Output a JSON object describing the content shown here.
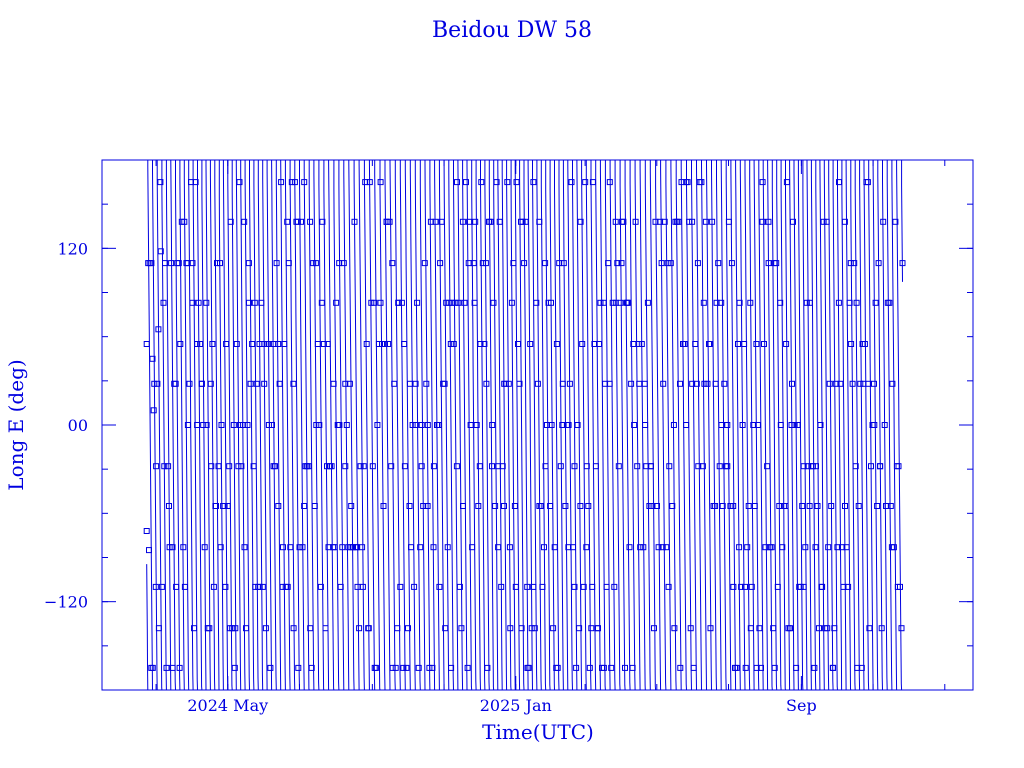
{
  "chart_data": {
    "type": "line",
    "title": "Beidou DW 58",
    "xlabel": "Time(UTC)",
    "ylabel": "Long E (deg)",
    "xlim": [
      "2024-01-15",
      "2026-01-25"
    ],
    "ylim": [
      -180,
      180
    ],
    "x_ticks": [
      {
        "value": "2024-05-01",
        "label": "2024 May"
      },
      {
        "value": "2025-01-01",
        "label": "2025 Jan"
      },
      {
        "value": "2025-09-01",
        "label": "Sep"
      }
    ],
    "y_ticks": [
      {
        "value": -120,
        "label": "−120"
      },
      {
        "value": 0,
        "label": "00"
      },
      {
        "value": 120,
        "label": "120"
      }
    ],
    "grid": false,
    "line_color": "#0000e0",
    "marker": "square",
    "series": [
      {
        "data_start": "2024-02-22",
        "data_end": "2025-11-26",
        "points": [
          [
            "2024-02-22",
            -72
          ],
          [
            "2024-02-24",
            -85
          ],
          [
            "2024-02-26",
            110
          ],
          [
            "2024-02-27",
            45
          ],
          [
            "2024-02-28",
            10
          ],
          [
            "2024-03-01",
            -28
          ],
          [
            "2024-03-03",
            65
          ],
          [
            "2024-03-05",
            118
          ],
          [
            "2024-03-08",
            -28
          ],
          [
            "2024-03-12",
            -55
          ],
          [
            "2024-03-15",
            -83
          ],
          [
            "2024-03-18",
            -110
          ],
          [
            "2024-03-21",
            -165
          ],
          [
            "2024-03-25",
            138
          ],
          [
            "2024-03-28",
            110
          ],
          [
            "2024-04-01",
            83
          ],
          [
            "2024-04-05",
            55
          ],
          [
            "2024-04-09",
            28
          ],
          [
            "2024-04-13",
            0
          ],
          [
            "2024-04-17",
            -28
          ],
          [
            "2024-04-21",
            -55
          ],
          [
            "2024-04-25",
            -83
          ],
          [
            "2024-04-29",
            -110
          ],
          [
            "2024-05-03",
            -138
          ],
          [
            "2024-05-07",
            -165
          ],
          [
            "2024-05-11",
            165
          ],
          [
            "2024-05-15",
            138
          ],
          [
            "2024-05-19",
            110
          ],
          [
            "2024-05-24",
            83
          ],
          [
            "2024-05-28",
            55
          ],
          [
            "2024-06-01",
            28
          ],
          [
            "2024-06-05",
            0
          ],
          [
            "2024-06-09",
            -28
          ],
          [
            "2024-06-13",
            -55
          ],
          [
            "2024-06-17",
            -83
          ],
          [
            "2024-06-21",
            -110
          ],
          [
            "2024-06-26",
            -138
          ],
          [
            "2024-06-30",
            -165
          ],
          [
            "2024-07-05",
            165
          ],
          [
            "2024-07-10",
            138
          ],
          [
            "2024-07-15",
            110
          ],
          [
            "2024-07-20",
            83
          ],
          [
            "2024-07-25",
            55
          ],
          [
            "2024-07-30",
            28
          ],
          [
            "2024-08-04",
            0
          ],
          [
            "2024-08-09",
            -28
          ],
          [
            "2024-08-14",
            -55
          ],
          [
            "2024-08-19",
            -83
          ],
          [
            "2024-08-24",
            -110
          ],
          [
            "2024-08-29",
            -138
          ],
          [
            "2024-09-03",
            -165
          ],
          [
            "2024-09-08",
            165
          ],
          [
            "2024-09-13",
            138
          ],
          [
            "2024-09-18",
            110
          ],
          [
            "2024-09-23",
            83
          ],
          [
            "2024-09-28",
            55
          ],
          [
            "2024-10-03",
            28
          ],
          [
            "2024-10-08",
            0
          ],
          [
            "2024-10-13",
            -28
          ],
          [
            "2024-10-18",
            -55
          ],
          [
            "2024-10-23",
            -83
          ],
          [
            "2024-10-28",
            -110
          ],
          [
            "2024-11-02",
            -138
          ],
          [
            "2024-11-07",
            -165
          ],
          [
            "2024-11-12",
            165
          ],
          [
            "2024-11-17",
            138
          ],
          [
            "2024-11-22",
            110
          ],
          [
            "2024-11-27",
            83
          ],
          [
            "2024-12-02",
            55
          ],
          [
            "2024-12-07",
            28
          ],
          [
            "2024-12-12",
            0
          ],
          [
            "2024-12-17",
            -28
          ],
          [
            "2024-12-22",
            -55
          ],
          [
            "2024-12-27",
            -83
          ],
          [
            "2025-01-01",
            -110
          ],
          [
            "2025-01-06",
            -138
          ],
          [
            "2025-01-11",
            -165
          ],
          [
            "2025-01-16",
            165
          ],
          [
            "2025-01-21",
            138
          ],
          [
            "2025-01-26",
            110
          ],
          [
            "2025-01-31",
            83
          ],
          [
            "2025-02-05",
            55
          ],
          [
            "2025-02-10",
            28
          ],
          [
            "2025-02-15",
            0
          ],
          [
            "2025-02-20",
            -28
          ],
          [
            "2025-02-25",
            -55
          ],
          [
            "2025-03-02",
            -83
          ],
          [
            "2025-03-07",
            -110
          ],
          [
            "2025-03-12",
            -138
          ],
          [
            "2025-03-17",
            -165
          ],
          [
            "2025-03-22",
            165
          ],
          [
            "2025-03-27",
            138
          ],
          [
            "2025-04-01",
            110
          ],
          [
            "2025-04-06",
            83
          ],
          [
            "2025-04-11",
            55
          ],
          [
            "2025-04-16",
            28
          ],
          [
            "2025-04-21",
            0
          ],
          [
            "2025-04-26",
            -28
          ],
          [
            "2025-05-01",
            -55
          ],
          [
            "2025-05-06",
            -83
          ],
          [
            "2025-05-11",
            -110
          ],
          [
            "2025-05-16",
            -138
          ],
          [
            "2025-05-21",
            -165
          ],
          [
            "2025-05-26",
            165
          ],
          [
            "2025-05-31",
            138
          ],
          [
            "2025-06-05",
            110
          ],
          [
            "2025-06-10",
            83
          ],
          [
            "2025-06-15",
            55
          ],
          [
            "2025-06-20",
            28
          ],
          [
            "2025-06-25",
            0
          ],
          [
            "2025-06-30",
            -28
          ],
          [
            "2025-07-05",
            -55
          ],
          [
            "2025-07-10",
            -83
          ],
          [
            "2025-07-15",
            -110
          ],
          [
            "2025-07-20",
            -138
          ],
          [
            "2025-07-25",
            -165
          ],
          [
            "2025-07-30",
            165
          ],
          [
            "2025-08-04",
            138
          ],
          [
            "2025-08-09",
            110
          ],
          [
            "2025-08-14",
            83
          ],
          [
            "2025-08-19",
            55
          ],
          [
            "2025-08-24",
            28
          ],
          [
            "2025-08-29",
            0
          ],
          [
            "2025-09-03",
            -28
          ],
          [
            "2025-09-08",
            -55
          ],
          [
            "2025-09-13",
            -83
          ],
          [
            "2025-09-18",
            -110
          ],
          [
            "2025-09-23",
            -138
          ],
          [
            "2025-09-28",
            -165
          ],
          [
            "2025-10-03",
            165
          ],
          [
            "2025-10-08",
            138
          ],
          [
            "2025-10-13",
            110
          ],
          [
            "2025-10-18",
            83
          ],
          [
            "2025-10-23",
            55
          ],
          [
            "2025-10-28",
            28
          ],
          [
            "2025-11-02",
            0
          ],
          [
            "2025-11-07",
            -28
          ],
          [
            "2025-11-12",
            -55
          ],
          [
            "2025-11-17",
            -83
          ],
          [
            "2025-11-22",
            -110
          ],
          [
            "2025-11-26",
            110
          ]
        ]
      }
    ]
  }
}
